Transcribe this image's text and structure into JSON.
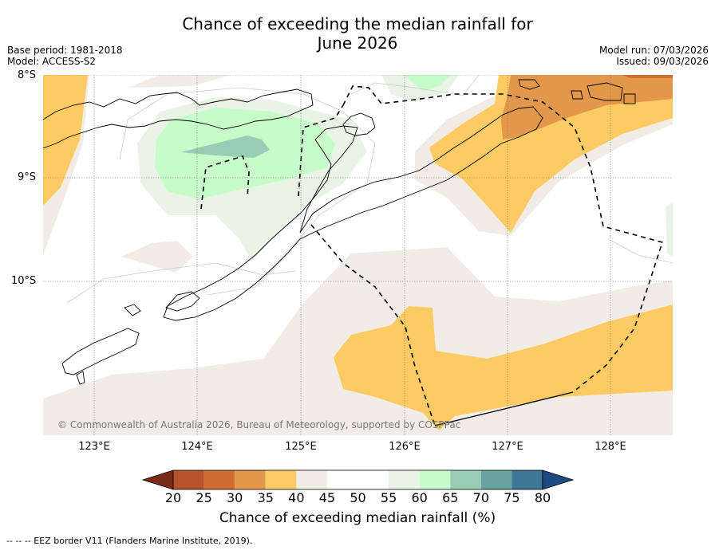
{
  "title_line1": "Chance of exceeding the median rainfall for",
  "title_line2": "June 2026",
  "meta_left": [
    "Base period: 1981-2018",
    "Model: ACCESS-S2"
  ],
  "meta_right": [
    "Model run: 07/03/2026",
    "Issued: 09/03/2026"
  ],
  "lat_labels": [
    "8°S",
    "9°S",
    "10°S"
  ],
  "lon_labels": [
    "123°E",
    "124°E",
    "125°E",
    "126°E",
    "127°E",
    "128°E"
  ],
  "copyright": "© Commonwealth of Australia 2026, Bureau of Meteorology, supported by COSPPac",
  "colorbar": {
    "title": "Chance of exceeding median rainfall (%)",
    "ticks": [
      "20",
      "25",
      "30",
      "35",
      "40",
      "45",
      "50",
      "55",
      "60",
      "65",
      "70",
      "75",
      "80"
    ],
    "colors": [
      "#7a2b18",
      "#b5532a",
      "#cf6d34",
      "#e2974a",
      "#fdca63",
      "#f1ede6",
      "#ffffff",
      "#ffffff",
      "#e9f4e7",
      "#c7fcca",
      "#98cdb4",
      "#6aa3a2",
      "#3f7797",
      "#1b4b80"
    ]
  },
  "footer": "--  --  -- EEZ border V11 (Flanders Marine Institute, 2019)."
}
